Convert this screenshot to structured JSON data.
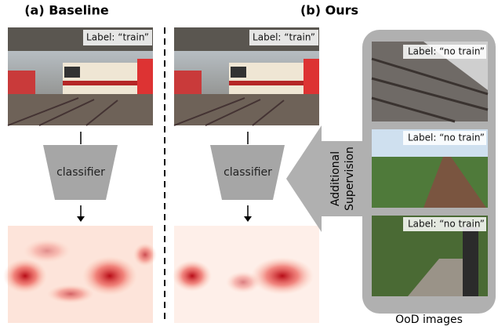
{
  "panels": [
    {
      "title": "(a) Baseline",
      "image_label": "Label: “train”",
      "model": "classifier"
    },
    {
      "title": "(b) Ours",
      "image_label": "Label: “train”",
      "model": "classifier"
    }
  ],
  "supervision": {
    "label_lines": [
      "Additional",
      "Supervision"
    ]
  },
  "ood": {
    "images": [
      {
        "label": "Label: “no train”"
      },
      {
        "label": "Label: “no train”"
      },
      {
        "label": "Label: “no train”"
      }
    ],
    "caption": "OoD images"
  }
}
